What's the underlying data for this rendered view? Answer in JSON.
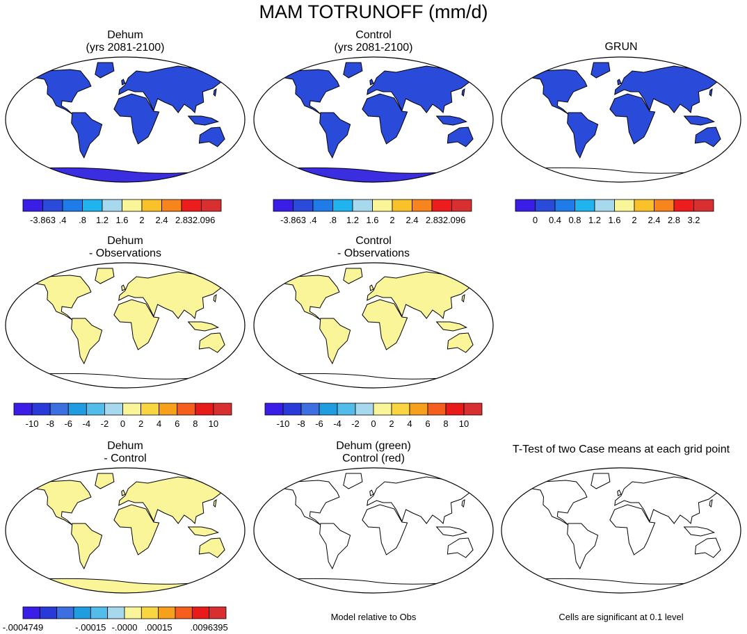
{
  "title": "MAM TOTRUNOFF (mm/d)",
  "panels": [
    {
      "title": [
        "Dehum",
        "(yrs 2081-2100)"
      ],
      "colorbar": {
        "colors": [
          "#3a1ee8",
          "#2a4bd9",
          "#1f7be8",
          "#1fb4ee",
          "#a8d8ee",
          "#fbf59a",
          "#f9c22a",
          "#f7841c",
          "#ee1d1d",
          "#d83030"
        ],
        "labels": [
          "-3.863",
          ".4",
          ".8",
          "1.2",
          "1.6",
          "2",
          "2.4",
          "2.8",
          "32.096"
        ]
      }
    },
    {
      "title": [
        "Control",
        "(yrs 2081-2100)"
      ],
      "colorbar": {
        "colors": [
          "#3a1ee8",
          "#2a4bd9",
          "#1f7be8",
          "#1fb4ee",
          "#a8d8ee",
          "#fbf59a",
          "#f9c22a",
          "#f7841c",
          "#ee1d1d",
          "#d83030"
        ],
        "labels": [
          "-3.863",
          ".4",
          ".8",
          "1.2",
          "1.6",
          "2",
          "2.4",
          "2.8",
          "32.096"
        ]
      }
    },
    {
      "title": [
        "GRUN"
      ],
      "colorbar": {
        "colors": [
          "#3a1ee8",
          "#2a4bd9",
          "#1f7be8",
          "#1fb4ee",
          "#a8d8ee",
          "#fbf59a",
          "#f9c22a",
          "#f7841c",
          "#ee1d1d",
          "#d83030"
        ],
        "labels": [
          "0",
          "0.4",
          "0.8",
          "1.2",
          "1.6",
          "2",
          "2.4",
          "2.8",
          "3.2"
        ]
      }
    },
    {
      "title": [
        "Dehum",
        "- Observations"
      ],
      "colorbar": {
        "colors": [
          "#3a1ee8",
          "#2a3ad9",
          "#3d6fe0",
          "#209ce0",
          "#52bcea",
          "#a8d8ee",
          "#fbf59a",
          "#f9d542",
          "#f7a01c",
          "#f55e1c",
          "#e81a1a",
          "#d83030"
        ],
        "labels": [
          "-10",
          "-8",
          "-6",
          "-4",
          "-2",
          "0",
          "2",
          "4",
          "6",
          "8",
          "10"
        ]
      }
    },
    {
      "title": [
        "Control",
        "- Observations"
      ],
      "colorbar": {
        "colors": [
          "#3a1ee8",
          "#2a3ad9",
          "#3d6fe0",
          "#209ce0",
          "#52bcea",
          "#a8d8ee",
          "#fbf59a",
          "#f9d542",
          "#f7a01c",
          "#f55e1c",
          "#e81a1a",
          "#d83030"
        ],
        "labels": [
          "-10",
          "-8",
          "-6",
          "-4",
          "-2",
          "0",
          "2",
          "4",
          "6",
          "8",
          "10"
        ]
      }
    },
    {
      "title": [
        "Dehum",
        "- Control"
      ],
      "colorbar": {
        "colors": [
          "#3a1ee8",
          "#2a3ad9",
          "#3d6fe0",
          "#209ce0",
          "#52bcea",
          "#a8d8ee",
          "#fbf59a",
          "#f9d542",
          "#f7a01c",
          "#f55e1c",
          "#e81a1a",
          "#d83030"
        ],
        "labels": [
          "-.0004749",
          "-.00015",
          "-.0000",
          ".00015",
          ".0096395"
        ]
      }
    },
    {
      "title": [
        "Dehum (green)",
        "Control (red)"
      ],
      "note": "Model relative to Obs"
    },
    {
      "title": [
        "T-Test of two Case means at each grid point"
      ],
      "note": "Cells are significant at 0.1 level"
    }
  ]
}
